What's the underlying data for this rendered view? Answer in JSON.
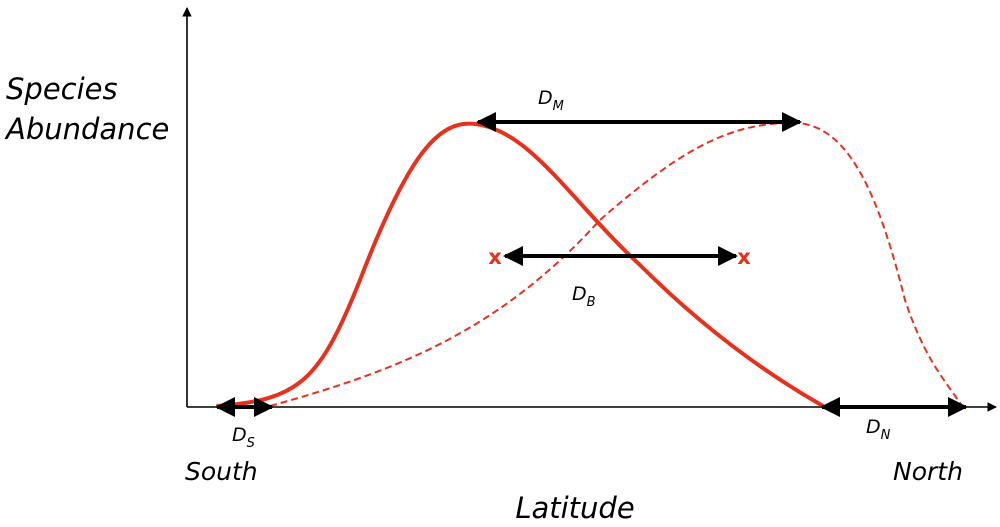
{
  "diagram": {
    "y_axis_label_line1": "Species",
    "y_axis_label_line2": "Abundance",
    "x_axis_label": "Latitude",
    "left_end_label": "South",
    "right_end_label": "North",
    "x_marker": "x",
    "distances": {
      "dm": {
        "main": "D",
        "sub": "M"
      },
      "db": {
        "main": "D",
        "sub": "B"
      },
      "ds": {
        "main": "D",
        "sub": "S"
      },
      "dn": {
        "main": "D",
        "sub": "N"
      }
    }
  },
  "colors": {
    "curve": "#e8311d",
    "axis": "#000000",
    "arrow": "#000000",
    "marker": "#e8311d"
  }
}
